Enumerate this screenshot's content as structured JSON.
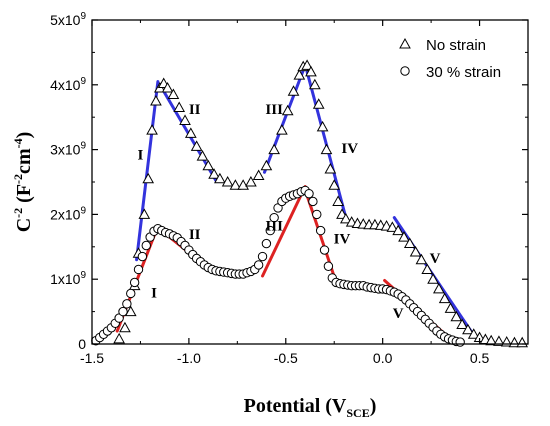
{
  "chart_data": {
    "type": "scatter",
    "xlabel": "Potential (V",
    "xlabel_sub": "SCE",
    "xlabel_close": ")",
    "ylabel": "C",
    "ylabel_sup": "-2",
    "ylabel_rest": " (F",
    "ylabel_sup2": "-2",
    "ylabel_rest2": "cm",
    "ylabel_sup3": "-4",
    "ylabel_close": ")",
    "xlim": [
      -1.5,
      0.75
    ],
    "ylim": [
      0,
      5000000000
    ],
    "x_ticks": [
      {
        "value": -1.5,
        "label": "-1.5"
      },
      {
        "value": -1.0,
        "label": "-1.0"
      },
      {
        "value": -0.5,
        "label": "-0.5"
      },
      {
        "value": 0.0,
        "label": "0.0"
      },
      {
        "value": 0.5,
        "label": "0.5"
      }
    ],
    "y_ticks": [
      {
        "value": 0,
        "mant": "0",
        "exp": ""
      },
      {
        "value": 1000000000,
        "mant": "1x10",
        "exp": "9"
      },
      {
        "value": 2000000000,
        "mant": "2x10",
        "exp": "9"
      },
      {
        "value": 3000000000,
        "mant": "3x10",
        "exp": "9"
      },
      {
        "value": 4000000000,
        "mant": "4x10",
        "exp": "9"
      },
      {
        "value": 5000000000,
        "mant": "5x10",
        "exp": "9"
      }
    ],
    "legend_position": "top-right",
    "series": [
      {
        "name": "No strain",
        "marker": "triangle",
        "points": [
          [
            -1.36,
            80000000.0
          ],
          [
            -1.33,
            250000000.0
          ],
          [
            -1.3,
            500000000.0
          ],
          [
            -1.28,
            900000000.0
          ],
          [
            -1.26,
            1400000000.0
          ],
          [
            -1.23,
            2000000000.0
          ],
          [
            -1.21,
            2550000000.0
          ],
          [
            -1.19,
            3300000000.0
          ],
          [
            -1.17,
            3750000000.0
          ],
          [
            -1.15,
            3950000000.0
          ],
          [
            -1.13,
            4020000000.0
          ],
          [
            -1.11,
            3950000000.0
          ],
          [
            -1.08,
            3850000000.0
          ],
          [
            -1.05,
            3650000000.0
          ],
          [
            -1.02,
            3450000000.0
          ],
          [
            -0.99,
            3250000000.0
          ],
          [
            -0.96,
            3050000000.0
          ],
          [
            -0.93,
            2900000000.0
          ],
          [
            -0.9,
            2750000000.0
          ],
          [
            -0.87,
            2620000000.0
          ],
          [
            -0.84,
            2550000000.0
          ],
          [
            -0.8,
            2500000000.0
          ],
          [
            -0.76,
            2450000000.0
          ],
          [
            -0.72,
            2450000000.0
          ],
          [
            -0.68,
            2500000000.0
          ],
          [
            -0.64,
            2600000000.0
          ],
          [
            -0.6,
            2750000000.0
          ],
          [
            -0.56,
            3000000000.0
          ],
          [
            -0.52,
            3300000000.0
          ],
          [
            -0.49,
            3600000000.0
          ],
          [
            -0.46,
            3900000000.0
          ],
          [
            -0.43,
            4150000000.0
          ],
          [
            -0.41,
            4280000000.0
          ],
          [
            -0.39,
            4300000000.0
          ],
          [
            -0.37,
            4200000000.0
          ],
          [
            -0.35,
            4000000000.0
          ],
          [
            -0.33,
            3700000000.0
          ],
          [
            -0.31,
            3350000000.0
          ],
          [
            -0.29,
            3000000000.0
          ],
          [
            -0.27,
            2700000000.0
          ],
          [
            -0.25,
            2450000000.0
          ],
          [
            -0.23,
            2200000000.0
          ],
          [
            -0.21,
            2000000000.0
          ],
          [
            -0.19,
            1930000000.0
          ],
          [
            -0.16,
            1880000000.0
          ],
          [
            -0.13,
            1860000000.0
          ],
          [
            -0.1,
            1850000000.0
          ],
          [
            -0.07,
            1840000000.0
          ],
          [
            -0.04,
            1840000000.0
          ],
          [
            -0.01,
            1830000000.0
          ],
          [
            0.02,
            1820000000.0
          ],
          [
            0.05,
            1800000000.0
          ],
          [
            0.08,
            1750000000.0
          ],
          [
            0.11,
            1650000000.0
          ],
          [
            0.14,
            1550000000.0
          ],
          [
            0.17,
            1420000000.0
          ],
          [
            0.2,
            1300000000.0
          ],
          [
            0.23,
            1150000000.0
          ],
          [
            0.26,
            1000000000.0
          ],
          [
            0.29,
            850000000.0
          ],
          [
            0.32,
            700000000.0
          ],
          [
            0.35,
            550000000.0
          ],
          [
            0.38,
            420000000.0
          ],
          [
            0.41,
            300000000.0
          ],
          [
            0.44,
            220000000.0
          ],
          [
            0.47,
            150000000.0
          ],
          [
            0.5,
            100000000.0
          ],
          [
            0.53,
            70000000.0
          ],
          [
            0.56,
            50000000.0
          ],
          [
            0.6,
            40000000.0
          ],
          [
            0.64,
            30000000.0
          ],
          [
            0.68,
            20000000.0
          ],
          [
            0.72,
            20000000.0
          ]
        ],
        "fits": [
          {
            "from": [
              -1.27,
              1300000000.0
            ],
            "to": [
              -1.16,
              4050000000.0
            ]
          },
          {
            "from": [
              -1.13,
              3900000000.0
            ],
            "to": [
              -0.86,
              2520000000.0
            ]
          },
          {
            "from": [
              -0.61,
              2650000000.0
            ],
            "to": [
              -0.4,
              4300000000.0
            ]
          },
          {
            "from": [
              -0.39,
              4200000000.0
            ],
            "to": [
              -0.19,
              1950000000.0
            ]
          },
          {
            "from": [
              0.06,
              1950000000.0
            ],
            "to": [
              0.46,
              180000000.0
            ]
          }
        ],
        "fit_color": "#3333dd"
      },
      {
        "name": "30 % strain",
        "marker": "circle",
        "points": [
          [
            -1.48,
            50000000.0
          ],
          [
            -1.46,
            100000000.0
          ],
          [
            -1.44,
            150000000.0
          ],
          [
            -1.42,
            200000000.0
          ],
          [
            -1.4,
            250000000.0
          ],
          [
            -1.38,
            320000000.0
          ],
          [
            -1.36,
            400000000.0
          ],
          [
            -1.34,
            500000000.0
          ],
          [
            -1.32,
            620000000.0
          ],
          [
            -1.3,
            780000000.0
          ],
          [
            -1.28,
            950000000.0
          ],
          [
            -1.26,
            1150000000.0
          ],
          [
            -1.24,
            1350000000.0
          ],
          [
            -1.22,
            1520000000.0
          ],
          [
            -1.2,
            1650000000.0
          ],
          [
            -1.18,
            1740000000.0
          ],
          [
            -1.16,
            1780000000.0
          ],
          [
            -1.14,
            1750000000.0
          ],
          [
            -1.12,
            1720000000.0
          ],
          [
            -1.1,
            1700000000.0
          ],
          [
            -1.08,
            1670000000.0
          ],
          [
            -1.06,
            1640000000.0
          ],
          [
            -1.04,
            1580000000.0
          ],
          [
            -1.02,
            1520000000.0
          ],
          [
            -1.0,
            1450000000.0
          ],
          [
            -0.98,
            1380000000.0
          ],
          [
            -0.96,
            1320000000.0
          ],
          [
            -0.94,
            1270000000.0
          ],
          [
            -0.92,
            1220000000.0
          ],
          [
            -0.9,
            1180000000.0
          ],
          [
            -0.88,
            1150000000.0
          ],
          [
            -0.86,
            1130000000.0
          ],
          [
            -0.84,
            1120000000.0
          ],
          [
            -0.82,
            1110000000.0
          ],
          [
            -0.8,
            1100000000.0
          ],
          [
            -0.78,
            1090000000.0
          ],
          [
            -0.76,
            1080000000.0
          ],
          [
            -0.74,
            1080000000.0
          ],
          [
            -0.72,
            1080000000.0
          ],
          [
            -0.7,
            1100000000.0
          ],
          [
            -0.68,
            1120000000.0
          ],
          [
            -0.66,
            1150000000.0
          ],
          [
            -0.64,
            1220000000.0
          ],
          [
            -0.62,
            1350000000.0
          ],
          [
            -0.6,
            1550000000.0
          ],
          [
            -0.58,
            1750000000.0
          ],
          [
            -0.56,
            1950000000.0
          ],
          [
            -0.54,
            2100000000.0
          ],
          [
            -0.52,
            2200000000.0
          ],
          [
            -0.5,
            2250000000.0
          ],
          [
            -0.48,
            2280000000.0
          ],
          [
            -0.46,
            2300000000.0
          ],
          [
            -0.44,
            2320000000.0
          ],
          [
            -0.42,
            2350000000.0
          ],
          [
            -0.4,
            2370000000.0
          ],
          [
            -0.38,
            2320000000.0
          ],
          [
            -0.36,
            2200000000.0
          ],
          [
            -0.34,
            2000000000.0
          ],
          [
            -0.32,
            1750000000.0
          ],
          [
            -0.3,
            1450000000.0
          ],
          [
            -0.28,
            1200000000.0
          ],
          [
            -0.26,
            1020000000.0
          ],
          [
            -0.24,
            950000000.0
          ],
          [
            -0.22,
            930000000.0
          ],
          [
            -0.2,
            920000000.0
          ],
          [
            -0.18,
            910000000.0
          ],
          [
            -0.16,
            900000000.0
          ],
          [
            -0.14,
            900000000.0
          ],
          [
            -0.12,
            900000000.0
          ],
          [
            -0.1,
            900000000.0
          ],
          [
            -0.08,
            880000000.0
          ],
          [
            -0.06,
            870000000.0
          ],
          [
            -0.04,
            860000000.0
          ],
          [
            -0.02,
            850000000.0
          ],
          [
            0.0,
            850000000.0
          ],
          [
            0.02,
            840000000.0
          ],
          [
            0.04,
            820000000.0
          ],
          [
            0.06,
            800000000.0
          ],
          [
            0.08,
            770000000.0
          ],
          [
            0.1,
            730000000.0
          ],
          [
            0.12,
            680000000.0
          ],
          [
            0.14,
            620000000.0
          ],
          [
            0.16,
            560000000.0
          ],
          [
            0.18,
            500000000.0
          ],
          [
            0.2,
            440000000.0
          ],
          [
            0.22,
            380000000.0
          ],
          [
            0.24,
            320000000.0
          ],
          [
            0.26,
            260000000.0
          ],
          [
            0.28,
            200000000.0
          ],
          [
            0.3,
            150000000.0
          ],
          [
            0.32,
            110000000.0
          ],
          [
            0.34,
            80000000.0
          ],
          [
            0.36,
            60000000.0
          ],
          [
            0.38,
            40000000.0
          ],
          [
            0.4,
            30000000.0
          ]
        ],
        "fits": [
          {
            "from": [
              -1.37,
              200000000.0
            ],
            "to": [
              -1.16,
              1820000000.0
            ]
          },
          {
            "from": [
              -1.15,
              1770000000.0
            ],
            "to": [
              -0.87,
              1100000000.0
            ]
          },
          {
            "from": [
              -0.62,
              1050000000.0
            ],
            "to": [
              -0.4,
              2430000000.0
            ]
          },
          {
            "from": [
              -0.4,
              2380000000.0
            ],
            "to": [
              -0.24,
              950000000.0
            ]
          },
          {
            "from": [
              0.01,
              980000000.0
            ],
            "to": [
              0.36,
              50000000.0
            ]
          }
        ],
        "fit_color": "#dd2222"
      }
    ],
    "region_labels": [
      {
        "text": "I",
        "x": -1.25,
        "y": 2850000000.0
      },
      {
        "text": "II",
        "x": -0.97,
        "y": 3550000000.0
      },
      {
        "text": "III",
        "x": -0.56,
        "y": 3550000000.0
      },
      {
        "text": "IV",
        "x": -0.17,
        "y": 2950000000.0
      },
      {
        "text": "V",
        "x": 0.27,
        "y": 1250000000.0
      },
      {
        "text": "I",
        "x": -1.18,
        "y": 720000000.0
      },
      {
        "text": "II",
        "x": -0.97,
        "y": 1620000000.0
      },
      {
        "text": "III",
        "x": -0.56,
        "y": 1750000000.0
      },
      {
        "text": "IV",
        "x": -0.21,
        "y": 1550000000.0
      },
      {
        "text": "V",
        "x": 0.08,
        "y": 400000000.0
      }
    ]
  }
}
